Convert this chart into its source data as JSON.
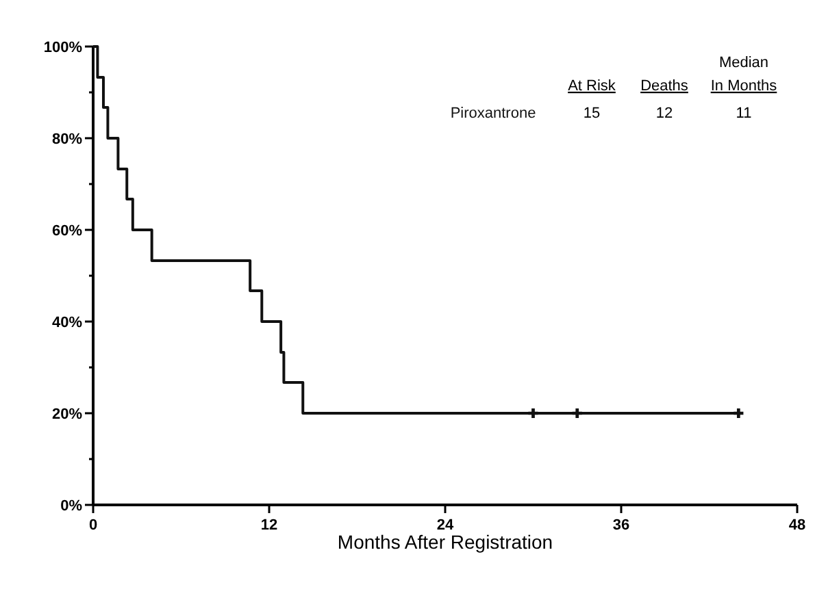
{
  "chart_data": {
    "type": "step",
    "xlabel": "Months After Registration",
    "xlim": [
      0,
      48
    ],
    "xticks": [
      0,
      12,
      24,
      36,
      48
    ],
    "ylim": [
      0,
      100
    ],
    "yticks": [
      {
        "value": 0,
        "label": "0%"
      },
      {
        "value": 10,
        "label": null
      },
      {
        "value": 20,
        "label": "20%"
      },
      {
        "value": 30,
        "label": null
      },
      {
        "value": 40,
        "label": "40%"
      },
      {
        "value": 50,
        "label": null
      },
      {
        "value": 60,
        "label": "60%"
      },
      {
        "value": 70,
        "label": null
      },
      {
        "value": 80,
        "label": "80%"
      },
      {
        "value": 90,
        "label": null
      },
      {
        "value": 100,
        "label": "100%"
      }
    ],
    "series": [
      {
        "name": "Piroxantrone",
        "color": "#111111",
        "x": [
          0,
          0.3,
          0.7,
          1,
          1.7,
          2.3,
          2.7,
          4,
          10.7,
          11.5,
          12.8,
          13,
          14.3,
          44
        ],
        "values": [
          100,
          93.3,
          86.7,
          80,
          73.3,
          66.7,
          60,
          53.3,
          46.7,
          40,
          33.3,
          26.7,
          20,
          20
        ]
      },
      {
        "type": "scatter",
        "color": "#111111",
        "marker": "cross",
        "x": [
          30,
          33,
          44
        ],
        "values": [
          20,
          20,
          20
        ]
      }
    ],
    "legend": "top right",
    "annotations": [
      "At Risk",
      "Deaths",
      "Median In Months",
      "15",
      "12",
      "11"
    ]
  }
}
